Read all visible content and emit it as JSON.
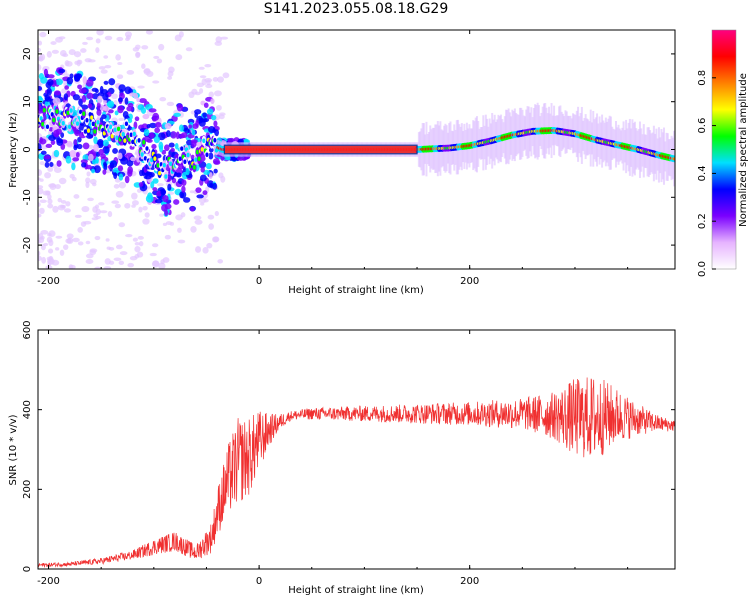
{
  "title": "S141.2023.055.08.18.G29",
  "chart_data": [
    {
      "type": "heatmap",
      "title": "S141.2023.055.08.18.G29",
      "xlabel": "Height of straight line (km)",
      "ylabel": "Frequency (Hz)",
      "xlim": [
        -210,
        395
      ],
      "ylim": [
        -25,
        25
      ],
      "x_ticks": [
        "-200",
        "0",
        "200"
      ],
      "y_ticks": [
        "20",
        "10",
        "0",
        "-10",
        "-20"
      ],
      "grid": false,
      "colorbar": {
        "label": "Normalized spectral amplitude",
        "range": [
          0,
          1
        ],
        "ticks": [
          "0.0",
          "0.2",
          "0.4",
          "0.6",
          "0.8"
        ],
        "colors": [
          "#ffffff",
          "#e6b3ff",
          "#7a00ff",
          "#0000ff",
          "#00e0ff",
          "#00ff00",
          "#ffff00",
          "#ff8000",
          "#ff0000",
          "#ff0080"
        ]
      },
      "ridge": {
        "x": [
          -210,
          -190,
          -170,
          -150,
          -130,
          -115,
          -105,
          -95,
          -85,
          -75,
          -65,
          -55,
          -45,
          -35,
          -30,
          0,
          50,
          100,
          150,
          180,
          200,
          220,
          240,
          260,
          280,
          300,
          320,
          340,
          360,
          380,
          395
        ],
        "y": [
          6,
          7,
          6,
          5,
          4,
          2,
          -1,
          -3,
          -4,
          0,
          -3,
          0,
          1,
          0,
          0,
          0,
          0,
          0,
          0,
          0.3,
          0.8,
          1.8,
          3,
          3.8,
          4,
          3.3,
          2,
          1,
          0,
          -1.2,
          -2
        ]
      }
    },
    {
      "type": "line",
      "xlabel": "Height of straight line (km)",
      "ylabel": "SNR (10 * v/v)",
      "xlim": [
        -210,
        395
      ],
      "ylim": [
        0,
        600
      ],
      "x_ticks": [
        "-200",
        "0",
        "200"
      ],
      "y_ticks": [
        "600",
        "400",
        "200",
        "0"
      ],
      "grid": false,
      "color": "#f03030",
      "x": [
        -210,
        -180,
        -150,
        -120,
        -100,
        -80,
        -60,
        -45,
        -40,
        -30,
        -20,
        -10,
        0,
        10,
        20,
        30,
        50,
        100,
        150,
        200,
        250,
        280,
        300,
        320,
        340,
        360,
        380,
        395
      ],
      "y": [
        10,
        12,
        20,
        35,
        55,
        70,
        40,
        80,
        140,
        220,
        270,
        280,
        320,
        350,
        370,
        385,
        390,
        390,
        390,
        390,
        390,
        385,
        380,
        380,
        385,
        375,
        365,
        360
      ],
      "noise": [
        5,
        5,
        8,
        12,
        20,
        25,
        20,
        40,
        60,
        90,
        110,
        100,
        80,
        40,
        20,
        12,
        15,
        20,
        25,
        30,
        40,
        60,
        100,
        110,
        70,
        40,
        20,
        15
      ]
    }
  ]
}
